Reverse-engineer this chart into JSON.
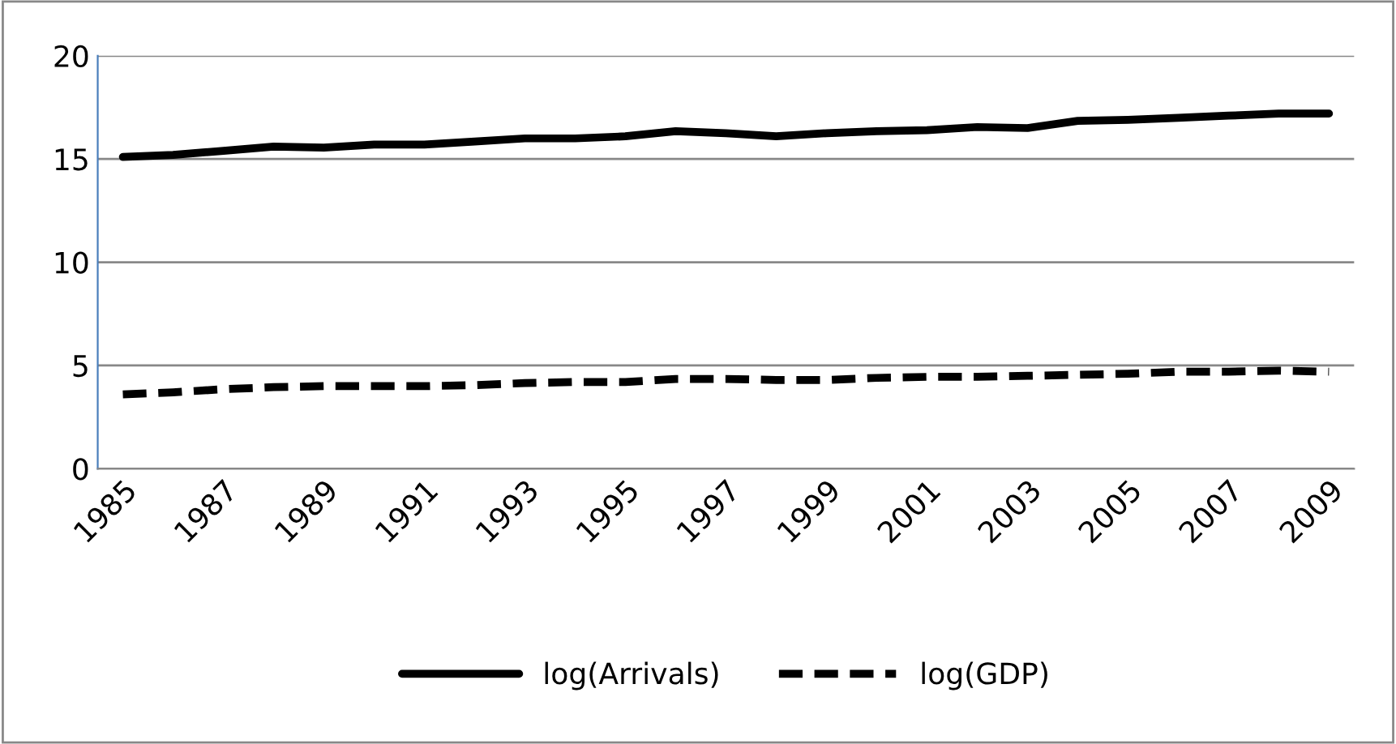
{
  "chart_data": {
    "type": "line",
    "categories": [
      "1985",
      null,
      "1987",
      null,
      "1989",
      null,
      "1991",
      null,
      "1993",
      null,
      "1995",
      null,
      "1997",
      null,
      "1999",
      null,
      "2001",
      null,
      "2003",
      null,
      "2005",
      null,
      "2007",
      null,
      "2009"
    ],
    "series": [
      {
        "name": "log(Arrivals)",
        "color": "#000000",
        "line_style": "solid",
        "values": [
          15.1,
          15.2,
          15.4,
          15.6,
          15.55,
          15.7,
          15.7,
          15.85,
          16.0,
          16.0,
          16.1,
          16.35,
          16.25,
          16.1,
          16.25,
          16.35,
          16.4,
          16.55,
          16.5,
          16.85,
          16.9,
          17.0,
          17.1,
          17.2,
          17.2
        ]
      },
      {
        "name": "log(GDP)",
        "color": "#000000",
        "line_style": "dashed",
        "values": [
          3.6,
          3.7,
          3.85,
          3.95,
          4.0,
          4.0,
          4.0,
          4.05,
          4.15,
          4.2,
          4.2,
          4.35,
          4.35,
          4.3,
          4.3,
          4.4,
          4.45,
          4.45,
          4.5,
          4.55,
          4.6,
          4.7,
          4.7,
          4.75,
          4.7
        ]
      }
    ],
    "ylim": [
      0,
      20
    ],
    "yticks": [
      0,
      5,
      10,
      15,
      20
    ],
    "grid": "y",
    "legend": "bottom",
    "marker": "none"
  }
}
